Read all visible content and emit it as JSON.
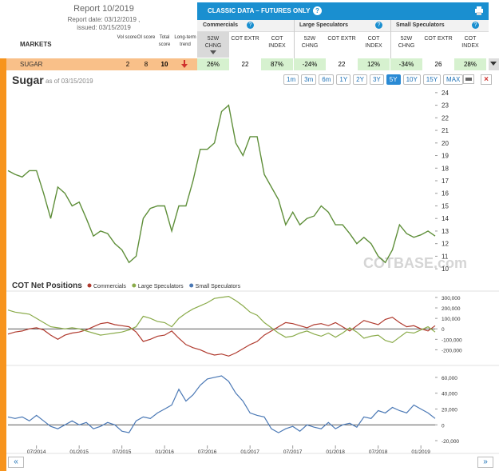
{
  "report": {
    "title": "Report 10/2019",
    "date": "Report date: 03/12/2019 ,",
    "issued": "issued: 03/15/2019"
  },
  "table": {
    "banner": "CLASSIC DATA – FUTURES ONLY",
    "help": "?",
    "columns": [
      "MARKETS",
      "Vol score",
      "OI score",
      "Total score",
      "Long-term trend"
    ],
    "groups": [
      "Commercials",
      "Large Speculators",
      "Small Speculators"
    ],
    "subcolumns": [
      "52W CHNG",
      "COT EXTR",
      "COT INDEX"
    ],
    "rows": [
      {
        "market": "SUGAR",
        "scores": [
          "2",
          "8",
          "10"
        ],
        "cells": [
          "26%",
          "22",
          "87%",
          "-24%",
          "22",
          "12%",
          "-34%",
          "26",
          "28%"
        ]
      }
    ]
  },
  "controls": {
    "ranges": [
      "1m",
      "3m",
      "6m",
      "1Y",
      "2Y",
      "3Y",
      "5Y",
      "10Y",
      "15Y",
      "MAX"
    ],
    "close": "×",
    "nav_prev": "«",
    "nav_next": "»"
  },
  "chart_data": [
    {
      "type": "line",
      "title": "Sugar",
      "subtitle": "as of 03/15/2019",
      "watermark": "COTBASE.com",
      "x": [
        "2014-03",
        "2014-04",
        "2014-05",
        "2014-06",
        "2014-07",
        "2014-08",
        "2014-09",
        "2014-10",
        "2014-11",
        "2014-12",
        "2015-01",
        "2015-02",
        "2015-03",
        "2015-04",
        "2015-05",
        "2015-06",
        "2015-07",
        "2015-08",
        "2015-09",
        "2015-10",
        "2015-11",
        "2015-12",
        "2016-01",
        "2016-02",
        "2016-03",
        "2016-04",
        "2016-05",
        "2016-06",
        "2016-07",
        "2016-08",
        "2016-09",
        "2016-10",
        "2016-11",
        "2016-12",
        "2017-01",
        "2017-02",
        "2017-03",
        "2017-04",
        "2017-05",
        "2017-06",
        "2017-07",
        "2017-08",
        "2017-09",
        "2017-10",
        "2017-11",
        "2017-12",
        "2018-01",
        "2018-02",
        "2018-03",
        "2018-04",
        "2018-05",
        "2018-06",
        "2018-07",
        "2018-08",
        "2018-09",
        "2018-10",
        "2018-11",
        "2018-12",
        "2019-01",
        "2019-02",
        "2019-03"
      ],
      "series": [
        {
          "color": "#5f8f3a",
          "values": [
            17.8,
            17.5,
            17.3,
            17.8,
            17.8,
            16,
            14,
            16.5,
            16,
            15,
            15.3,
            14,
            12.6,
            13,
            12.8,
            12,
            11.5,
            10.5,
            11,
            14,
            14.8,
            15,
            15,
            13,
            15,
            15,
            17,
            19.5,
            19.5,
            20,
            22.5,
            23,
            20,
            19,
            20.5,
            20.5,
            17.5,
            16.5,
            15.5,
            13.5,
            14.5,
            13.5,
            14,
            14.2,
            15,
            14.5,
            13.5,
            13.5,
            12.8,
            12,
            12.5,
            12,
            11,
            10.5,
            11.5,
            13.5,
            12.8,
            12.5,
            12.7,
            13,
            12.6
          ]
        }
      ],
      "ylim": [
        9.5,
        24.5
      ],
      "yticks": [
        10,
        11,
        12,
        13,
        14,
        15,
        16,
        17,
        18,
        19,
        20,
        21,
        22,
        23,
        24
      ]
    },
    {
      "type": "line",
      "title": "COT Net Positions",
      "zero_line": true,
      "x": [
        "2014-03",
        "2014-04",
        "2014-05",
        "2014-06",
        "2014-07",
        "2014-08",
        "2014-09",
        "2014-10",
        "2014-11",
        "2014-12",
        "2015-01",
        "2015-02",
        "2015-03",
        "2015-04",
        "2015-05",
        "2015-06",
        "2015-07",
        "2015-08",
        "2015-09",
        "2015-10",
        "2015-11",
        "2015-12",
        "2016-01",
        "2016-02",
        "2016-03",
        "2016-04",
        "2016-05",
        "2016-06",
        "2016-07",
        "2016-08",
        "2016-09",
        "2016-10",
        "2016-11",
        "2016-12",
        "2017-01",
        "2017-02",
        "2017-03",
        "2017-04",
        "2017-05",
        "2017-06",
        "2017-07",
        "2017-08",
        "2017-09",
        "2017-10",
        "2017-11",
        "2017-12",
        "2018-01",
        "2018-02",
        "2018-03",
        "2018-04",
        "2018-05",
        "2018-06",
        "2018-07",
        "2018-08",
        "2018-09",
        "2018-10",
        "2018-11",
        "2018-12",
        "2019-01",
        "2019-02",
        "2019-03"
      ],
      "series": [
        {
          "name": "Commercials",
          "color": "#b03a2e",
          "values": [
            -50000,
            -30000,
            -20000,
            0,
            10000,
            -10000,
            -60000,
            -100000,
            -60000,
            -40000,
            -30000,
            -10000,
            20000,
            50000,
            60000,
            40000,
            30000,
            20000,
            -30000,
            -120000,
            -100000,
            -70000,
            -60000,
            -20000,
            -90000,
            -150000,
            -180000,
            -200000,
            -230000,
            -250000,
            -240000,
            -260000,
            -230000,
            -190000,
            -150000,
            -120000,
            -60000,
            -20000,
            20000,
            60000,
            50000,
            30000,
            10000,
            40000,
            50000,
            30000,
            60000,
            20000,
            -20000,
            30000,
            80000,
            60000,
            40000,
            90000,
            110000,
            60000,
            20000,
            30000,
            0,
            -20000,
            30000
          ]
        },
        {
          "name": "Large Speculators",
          "color": "#8aab4a",
          "values": [
            180000,
            160000,
            150000,
            140000,
            100000,
            60000,
            20000,
            10000,
            0,
            10000,
            0,
            -20000,
            -40000,
            -60000,
            -50000,
            -40000,
            -30000,
            -10000,
            20000,
            120000,
            100000,
            70000,
            60000,
            20000,
            100000,
            150000,
            190000,
            220000,
            250000,
            290000,
            300000,
            310000,
            270000,
            220000,
            160000,
            130000,
            60000,
            10000,
            -40000,
            -80000,
            -70000,
            -40000,
            -20000,
            -50000,
            -70000,
            -40000,
            -80000,
            -40000,
            10000,
            -30000,
            -90000,
            -70000,
            -60000,
            -110000,
            -130000,
            -80000,
            -30000,
            -40000,
            -10000,
            20000,
            -30000
          ]
        }
      ],
      "ylim": [
        -250000,
        330000
      ],
      "yticks": [
        {
          "value": 300000,
          "label": "300,000"
        },
        {
          "value": 200000,
          "label": "200,000"
        },
        {
          "value": 100000,
          "label": "100,000"
        },
        0,
        {
          "value": -100000,
          "label": "-100,000"
        },
        {
          "value": -200000,
          "label": "-200,000"
        }
      ]
    },
    {
      "type": "line",
      "zero_line": true,
      "x": [
        "2014-03",
        "2014-04",
        "2014-05",
        "2014-06",
        "2014-07",
        "2014-08",
        "2014-09",
        "2014-10",
        "2014-11",
        "2014-12",
        "2015-01",
        "2015-02",
        "2015-03",
        "2015-04",
        "2015-05",
        "2015-06",
        "2015-07",
        "2015-08",
        "2015-09",
        "2015-10",
        "2015-11",
        "2015-12",
        "2016-01",
        "2016-02",
        "2016-03",
        "2016-04",
        "2016-05",
        "2016-06",
        "2016-07",
        "2016-08",
        "2016-09",
        "2016-10",
        "2016-11",
        "2016-12",
        "2017-01",
        "2017-02",
        "2017-03",
        "2017-04",
        "2017-05",
        "2017-06",
        "2017-07",
        "2017-08",
        "2017-09",
        "2017-10",
        "2017-11",
        "2017-12",
        "2018-01",
        "2018-02",
        "2018-03",
        "2018-04",
        "2018-05",
        "2018-06",
        "2018-07",
        "2018-08",
        "2018-09",
        "2018-10",
        "2018-11",
        "2018-12",
        "2019-01",
        "2019-02",
        "2019-03"
      ],
      "series": [
        {
          "name": "Small Speculators",
          "color": "#4a78b5",
          "values": [
            10000,
            8000,
            10000,
            5000,
            12000,
            5000,
            -2000,
            -5000,
            0,
            5000,
            0,
            3000,
            -5000,
            -2000,
            3000,
            0,
            -8000,
            -10000,
            5000,
            10000,
            8000,
            15000,
            20000,
            25000,
            45000,
            30000,
            38000,
            50000,
            58000,
            60000,
            62000,
            55000,
            40000,
            30000,
            15000,
            12000,
            10000,
            -5000,
            -10000,
            -5000,
            -2000,
            -8000,
            0,
            -3000,
            -5000,
            3000,
            -5000,
            0,
            2000,
            -3000,
            10000,
            8000,
            18000,
            15000,
            22000,
            18000,
            15000,
            25000,
            20000,
            15000,
            8000
          ]
        }
      ],
      "ylim": [
        -22000,
        66000
      ],
      "yticks": [
        {
          "value": 60000,
          "label": "60,000"
        },
        {
          "value": 40000,
          "label": "40,000"
        },
        {
          "value": 20000,
          "label": "20,000"
        },
        0,
        {
          "value": -20000,
          "label": "-20,000"
        }
      ],
      "xticks": [
        {
          "value": "2014-07",
          "label": "07/2014"
        },
        {
          "value": "2015-01",
          "label": "01/2015"
        },
        {
          "value": "2015-07",
          "label": "07/2015"
        },
        {
          "value": "2016-01",
          "label": "01/2016"
        },
        {
          "value": "2016-07",
          "label": "07/2016"
        },
        {
          "value": "2017-01",
          "label": "01/2017"
        },
        {
          "value": "2017-07",
          "label": "07/2017"
        },
        {
          "value": "2018-01",
          "label": "01/2018"
        },
        {
          "value": "2018-07",
          "label": "07/2018"
        },
        {
          "value": "2019-01",
          "label": "01/2019"
        }
      ]
    }
  ]
}
